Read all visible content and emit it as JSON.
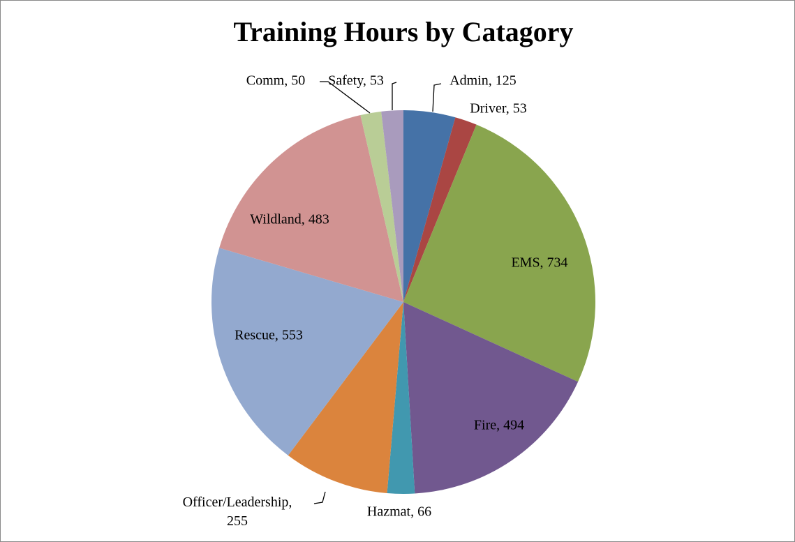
{
  "chart_data": {
    "type": "pie",
    "title": "Training Hours by Catagory",
    "categories": [
      "Admin",
      "Driver",
      "EMS",
      "Fire",
      "Hazmat",
      "Officer/Leadership",
      "Rescue",
      "Wildland",
      "Comm",
      "Safety"
    ],
    "values": [
      125,
      53,
      734,
      494,
      66,
      255,
      553,
      483,
      50,
      53
    ],
    "value_labels": [
      "Admin, 125",
      "Driver, 53",
      "EMS, 734",
      "Fire, 494",
      "Hazmat, 66",
      "Officer/Leadership, 255",
      "Rescue, 553",
      "Wildland, 483",
      "Comm, 50",
      "Safety, 53"
    ],
    "colors": [
      "#4572a7",
      "#aa4643",
      "#89a54e",
      "#71588f",
      "#4198af",
      "#db843d",
      "#93a9cf",
      "#d19392",
      "#b9cd96",
      "#a99bbd"
    ]
  }
}
